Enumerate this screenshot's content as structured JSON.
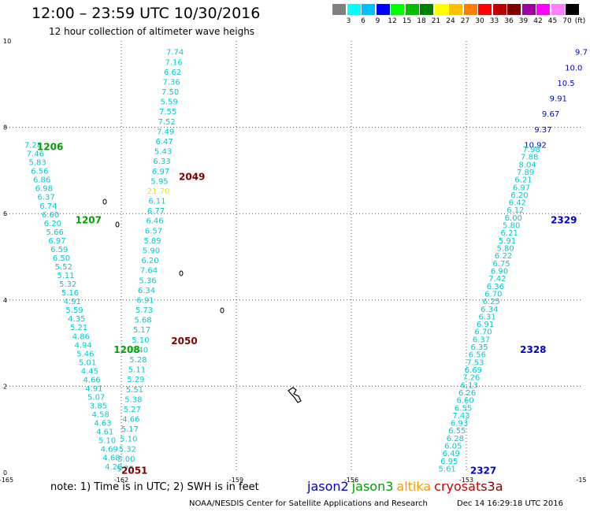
{
  "header": {
    "title": "12:00 – 23:59 UTC 10/30/2016",
    "subtitle": "12 hour collection of altimeter wave heighs"
  },
  "colorbar": {
    "colors": [
      "#808080",
      "#00ffff",
      "#00c0ff",
      "#0000ff",
      "#00ff00",
      "#00c000",
      "#008000",
      "#ffff00",
      "#ffc000",
      "#ff8000",
      "#ff0000",
      "#c00000",
      "#800000",
      "#a000a0",
      "#ff00ff",
      "#ff80ff",
      "#000000"
    ],
    "labels": [
      "3",
      "6",
      "9",
      "12",
      "15",
      "18",
      "21",
      "24",
      "27",
      "30",
      "33",
      "36",
      "39",
      "42",
      "45",
      "70"
    ],
    "unit": "(ft)"
  },
  "axes": {
    "x_ticks": [
      "-165",
      "-162",
      "-159",
      "-156",
      "-153",
      "-15"
    ],
    "y_ticks": [
      "10",
      "8",
      "6",
      "4",
      "2",
      "0"
    ]
  },
  "chart_data": {
    "type": "scatter",
    "x_range": [
      -165,
      -150
    ],
    "y_range": [
      0,
      10
    ],
    "tracks": [
      {
        "id": "1206",
        "satellite": "jason3",
        "lon": -164.2,
        "lat": 7.55
      },
      {
        "id": "1207",
        "satellite": "jason3",
        "lon": -163.2,
        "lat": 5.85
      },
      {
        "id": "1208",
        "satellite": "jason3",
        "lon": -162.2,
        "lat": 2.85
      },
      {
        "id": "2049",
        "satellite": "cryosat",
        "lon": -160.5,
        "lat": 6.85
      },
      {
        "id": "2050",
        "satellite": "cryosat",
        "lon": -160.7,
        "lat": 3.05
      },
      {
        "id": "2051",
        "satellite": "cryosat",
        "lon": -162.0,
        "lat": 0.05
      },
      {
        "id": "2327",
        "satellite": "jason2",
        "lon": -152.9,
        "lat": 0.05
      },
      {
        "id": "2328",
        "satellite": "jason2",
        "lon": -151.6,
        "lat": 2.85
      },
      {
        "id": "2329",
        "satellite": "jason2",
        "lon": -150.8,
        "lat": 5.85
      }
    ],
    "point_groups": [
      {
        "name": "jason3-cyan",
        "color": "#00cccc",
        "start": [
          -164.3,
          7.6
        ],
        "end": [
          -162.2,
          0.15
        ],
        "values": [
          "7.28",
          "7.46",
          "5.83",
          "6.56",
          "6.86",
          "6.98",
          "6.37",
          "6.74",
          "6.60",
          "6.20",
          "5.66",
          "6.97",
          "6.59",
          "6.50",
          "5.52",
          "5.11",
          "5.32",
          "5.16",
          "4.91",
          "5.59",
          "4.35",
          "5.21",
          "4.86",
          "4.94",
          "5.46",
          "5.01",
          "4.45",
          "4.66",
          "4.91",
          "5.07",
          "3.85",
          "4.58",
          "4.63",
          "4.61",
          "5.10",
          "4.69",
          "4.68",
          "4.28"
        ]
      },
      {
        "name": "cryosat-cyan",
        "color": "#00cccc",
        "start": [
          -160.6,
          9.75
        ],
        "end": [
          -161.9,
          0.1
        ],
        "values": [
          "7.74",
          "7.16",
          "6.62",
          "7.36",
          "7.50",
          "5.59",
          "7.55",
          "7.52",
          "7.49",
          "6.47",
          "5.43",
          "6.33",
          "6.97",
          "5.95",
          "21.70",
          "6.11",
          "6.77",
          "6.46",
          "6.57",
          "5.89",
          "5.90",
          "6.20",
          "7.64",
          "5.36",
          "6.34",
          "6.91",
          "5.73",
          "5.68",
          "5.17",
          "5.10",
          "6.40",
          "5.28",
          "5.11",
          "5.29",
          "5.51",
          "5.38",
          "5.27",
          "4.66",
          "5.17",
          "5.10",
          "5.32",
          "5.00",
          "5.75"
        ]
      },
      {
        "name": "jason2-blue",
        "color": "#0000cc",
        "start": [
          -150.0,
          9.75
        ],
        "end": [
          -151.2,
          7.6
        ],
        "values": [
          "9.7",
          "10.0",
          "10.5",
          "9.91",
          "9.67",
          "9.37",
          "10.92"
        ]
      },
      {
        "name": "jason2-cyan",
        "color": "#00cccc",
        "start": [
          -151.3,
          7.5
        ],
        "end": [
          -153.5,
          0.1
        ],
        "values": [
          "7.98",
          "7.88",
          "8.04",
          "7.89",
          "6.21",
          "6.97",
          "6.20",
          "6.42",
          "6.12",
          "6.00",
          "5.80",
          "6.21",
          "5.91",
          "5.80",
          "6.22",
          "6.75",
          "6.90",
          "7.42",
          "6.36",
          "6.70",
          "6.25",
          "6.34",
          "6.31",
          "6.91",
          "6.70",
          "6.37",
          "6.35",
          "6.56",
          "7.53",
          "6.69",
          "7.26",
          "6.13",
          "6.26",
          "6.60",
          "6.55",
          "7.43",
          "6.93",
          "6.55",
          "6.28",
          "6.05",
          "6.49",
          "6.95",
          "5.61"
        ]
      }
    ]
  },
  "footer": {
    "note": "note: 1) Time is in UTC; 2) SWH is in feet",
    "legend": [
      {
        "label": "jason2",
        "color": "#0000cc"
      },
      {
        "label": "jason3",
        "color": "#00a000"
      },
      {
        "label": "altika",
        "color": "#ff9900"
      },
      {
        "label": "cryosat",
        "color": "#cc0000"
      },
      {
        "label": "s3a",
        "color": "#800000"
      }
    ],
    "credit": "NOAA/NESDIS Center for Satellite Applications and Research",
    "datestamp": "Dec 14 16:29:18 UTC 2016"
  }
}
